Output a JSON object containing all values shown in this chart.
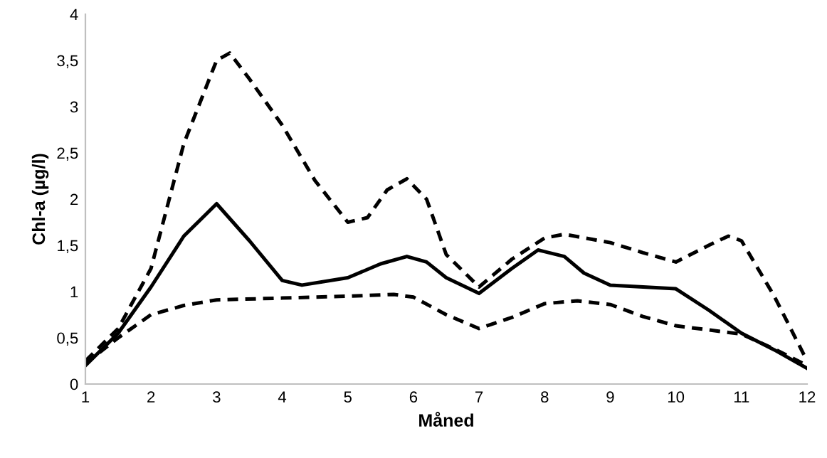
{
  "chart_data": {
    "type": "line",
    "xlabel": "Måned",
    "ylabel": "Chl-a (µg/l)",
    "xlim": [
      1,
      12
    ],
    "ylim": [
      0,
      4
    ],
    "xticks": [
      1,
      2,
      3,
      4,
      5,
      6,
      7,
      8,
      9,
      10,
      11,
      12
    ],
    "yticks": [
      0,
      {
        "value": 0.5,
        "label": "0,5"
      },
      1,
      {
        "value": 1.5,
        "label": "1,5"
      },
      2,
      {
        "value": 2.5,
        "label": "2,5"
      },
      3,
      {
        "value": 3.5,
        "label": "3,5"
      },
      4
    ],
    "grid": false,
    "legend": false,
    "marker": "none",
    "series": [
      {
        "color": "#000000",
        "line_style": "dashed",
        "x": [
          1,
          1.5,
          2,
          2.5,
          3,
          3.2,
          3.5,
          4,
          4.5,
          5,
          5.3,
          5.6,
          5.9,
          6.2,
          6.5,
          7,
          7.5,
          8,
          8.3,
          9,
          9.5,
          10,
          10.5,
          10.8,
          11,
          11.5,
          12
        ],
        "values": [
          0.25,
          0.6,
          1.25,
          2.6,
          3.5,
          3.58,
          3.3,
          2.8,
          2.2,
          1.75,
          1.8,
          2.1,
          2.22,
          2.0,
          1.4,
          1.05,
          1.35,
          1.58,
          1.62,
          1.53,
          1.42,
          1.32,
          1.5,
          1.6,
          1.55,
          0.95,
          0.25
        ]
      },
      {
        "color": "#000000",
        "line_style": "solid",
        "x": [
          1,
          1.5,
          2,
          2.5,
          3,
          3.5,
          4,
          4.3,
          5,
          5.5,
          5.9,
          6.2,
          6.5,
          7,
          7.5,
          7.9,
          8.3,
          8.6,
          9,
          9.5,
          10,
          10.5,
          11,
          11.5,
          12
        ],
        "values": [
          0.2,
          0.55,
          1.05,
          1.6,
          1.95,
          1.55,
          1.12,
          1.07,
          1.15,
          1.3,
          1.38,
          1.32,
          1.15,
          0.98,
          1.25,
          1.45,
          1.38,
          1.2,
          1.07,
          1.05,
          1.03,
          0.8,
          0.55,
          0.37,
          0.17
        ]
      },
      {
        "color": "#000000",
        "line_style": "dashed",
        "x": [
          1,
          1.5,
          2,
          2.5,
          3,
          4,
          5,
          5.7,
          6,
          6.5,
          7,
          7.5,
          8,
          8.5,
          9,
          9.5,
          10,
          11,
          11.5,
          12
        ],
        "values": [
          0.22,
          0.5,
          0.75,
          0.85,
          0.91,
          0.93,
          0.95,
          0.97,
          0.94,
          0.75,
          0.6,
          0.72,
          0.87,
          0.9,
          0.86,
          0.73,
          0.63,
          0.54,
          0.38,
          0.2
        ]
      }
    ]
  }
}
